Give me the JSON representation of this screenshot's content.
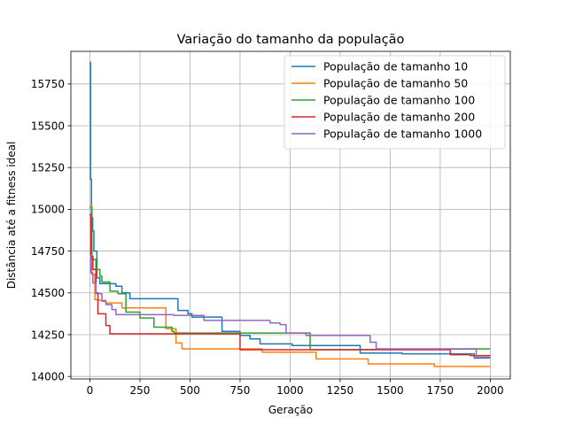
{
  "chart_data": {
    "type": "line",
    "title": "Variação do tamanho da população",
    "xlabel": "Geração",
    "ylabel": "Distância até a fitness ideal",
    "xlim": [
      -95,
      2100
    ],
    "ylim": [
      13985,
      15945
    ],
    "xticks": [
      0,
      250,
      500,
      750,
      1000,
      1250,
      1500,
      1750,
      2000
    ],
    "yticks": [
      14000,
      14250,
      14500,
      14750,
      15000,
      15250,
      15500,
      15750
    ],
    "grid": true,
    "legend_position": "top-right",
    "series": [
      {
        "name": "População de tamanho 10",
        "color": "#1f77b4",
        "points": [
          [
            0,
            15880
          ],
          [
            3,
            15880
          ],
          [
            3,
            15180
          ],
          [
            8,
            15180
          ],
          [
            8,
            14950
          ],
          [
            14,
            14950
          ],
          [
            14,
            14870
          ],
          [
            20,
            14870
          ],
          [
            20,
            14750
          ],
          [
            35,
            14750
          ],
          [
            35,
            14590
          ],
          [
            50,
            14590
          ],
          [
            50,
            14555
          ],
          [
            130,
            14555
          ],
          [
            130,
            14540
          ],
          [
            160,
            14540
          ],
          [
            160,
            14500
          ],
          [
            200,
            14500
          ],
          [
            200,
            14465
          ],
          [
            440,
            14465
          ],
          [
            440,
            14395
          ],
          [
            490,
            14395
          ],
          [
            490,
            14375
          ],
          [
            510,
            14375
          ],
          [
            510,
            14355
          ],
          [
            660,
            14355
          ],
          [
            660,
            14270
          ],
          [
            750,
            14270
          ],
          [
            750,
            14245
          ],
          [
            800,
            14245
          ],
          [
            800,
            14225
          ],
          [
            850,
            14225
          ],
          [
            850,
            14195
          ],
          [
            1010,
            14195
          ],
          [
            1010,
            14185
          ],
          [
            1350,
            14185
          ],
          [
            1350,
            14140
          ],
          [
            1560,
            14140
          ],
          [
            1560,
            14135
          ],
          [
            1920,
            14135
          ],
          [
            1920,
            14110
          ],
          [
            2000,
            14110
          ]
        ]
      },
      {
        "name": "População de tamanho 50",
        "color": "#ff7f0e",
        "points": [
          [
            0,
            15020
          ],
          [
            10,
            15020
          ],
          [
            10,
            14610
          ],
          [
            25,
            14610
          ],
          [
            25,
            14460
          ],
          [
            45,
            14460
          ],
          [
            45,
            14455
          ],
          [
            80,
            14455
          ],
          [
            80,
            14440
          ],
          [
            160,
            14440
          ],
          [
            160,
            14410
          ],
          [
            380,
            14410
          ],
          [
            380,
            14285
          ],
          [
            430,
            14285
          ],
          [
            430,
            14200
          ],
          [
            460,
            14200
          ],
          [
            460,
            14165
          ],
          [
            760,
            14165
          ],
          [
            760,
            14165
          ],
          [
            860,
            14165
          ],
          [
            860,
            14145
          ],
          [
            1130,
            14145
          ],
          [
            1130,
            14105
          ],
          [
            1390,
            14105
          ],
          [
            1390,
            14075
          ],
          [
            1720,
            14075
          ],
          [
            1720,
            14060
          ],
          [
            2000,
            14060
          ]
        ]
      },
      {
        "name": "População de tamanho 100",
        "color": "#2ca02c",
        "points": [
          [
            0,
            15010
          ],
          [
            10,
            15010
          ],
          [
            10,
            14700
          ],
          [
            30,
            14700
          ],
          [
            30,
            14640
          ],
          [
            50,
            14640
          ],
          [
            50,
            14600
          ],
          [
            60,
            14600
          ],
          [
            60,
            14565
          ],
          [
            100,
            14565
          ],
          [
            100,
            14510
          ],
          [
            140,
            14510
          ],
          [
            140,
            14495
          ],
          [
            180,
            14495
          ],
          [
            180,
            14385
          ],
          [
            250,
            14385
          ],
          [
            250,
            14350
          ],
          [
            320,
            14350
          ],
          [
            320,
            14295
          ],
          [
            410,
            14295
          ],
          [
            410,
            14270
          ],
          [
            420,
            14270
          ],
          [
            420,
            14260
          ],
          [
            1100,
            14260
          ],
          [
            1100,
            14160
          ],
          [
            2000,
            14165
          ]
        ]
      },
      {
        "name": "População de tamanho 200",
        "color": "#d62728",
        "points": [
          [
            0,
            14970
          ],
          [
            5,
            14970
          ],
          [
            5,
            14720
          ],
          [
            15,
            14720
          ],
          [
            15,
            14640
          ],
          [
            30,
            14640
          ],
          [
            30,
            14500
          ],
          [
            40,
            14500
          ],
          [
            40,
            14375
          ],
          [
            80,
            14375
          ],
          [
            80,
            14305
          ],
          [
            100,
            14305
          ],
          [
            100,
            14255
          ],
          [
            750,
            14255
          ],
          [
            750,
            14160
          ],
          [
            1800,
            14160
          ],
          [
            1800,
            14130
          ],
          [
            1900,
            14130
          ],
          [
            1900,
            14125
          ],
          [
            2000,
            14125
          ]
        ]
      },
      {
        "name": "População de tamanho 1000",
        "color": "#9467bd",
        "points": [
          [
            0,
            14730
          ],
          [
            5,
            14730
          ],
          [
            5,
            14620
          ],
          [
            15,
            14620
          ],
          [
            15,
            14560
          ],
          [
            30,
            14560
          ],
          [
            30,
            14495
          ],
          [
            60,
            14495
          ],
          [
            60,
            14450
          ],
          [
            80,
            14450
          ],
          [
            80,
            14430
          ],
          [
            110,
            14430
          ],
          [
            110,
            14400
          ],
          [
            130,
            14400
          ],
          [
            130,
            14370
          ],
          [
            420,
            14370
          ],
          [
            420,
            14365
          ],
          [
            570,
            14365
          ],
          [
            570,
            14335
          ],
          [
            900,
            14335
          ],
          [
            900,
            14320
          ],
          [
            950,
            14320
          ],
          [
            950,
            14310
          ],
          [
            980,
            14310
          ],
          [
            980,
            14260
          ],
          [
            1080,
            14260
          ],
          [
            1080,
            14245
          ],
          [
            1400,
            14245
          ],
          [
            1400,
            14205
          ],
          [
            1430,
            14205
          ],
          [
            1430,
            14165
          ],
          [
            1930,
            14165
          ],
          [
            1930,
            14115
          ],
          [
            2000,
            14115
          ]
        ]
      }
    ]
  }
}
